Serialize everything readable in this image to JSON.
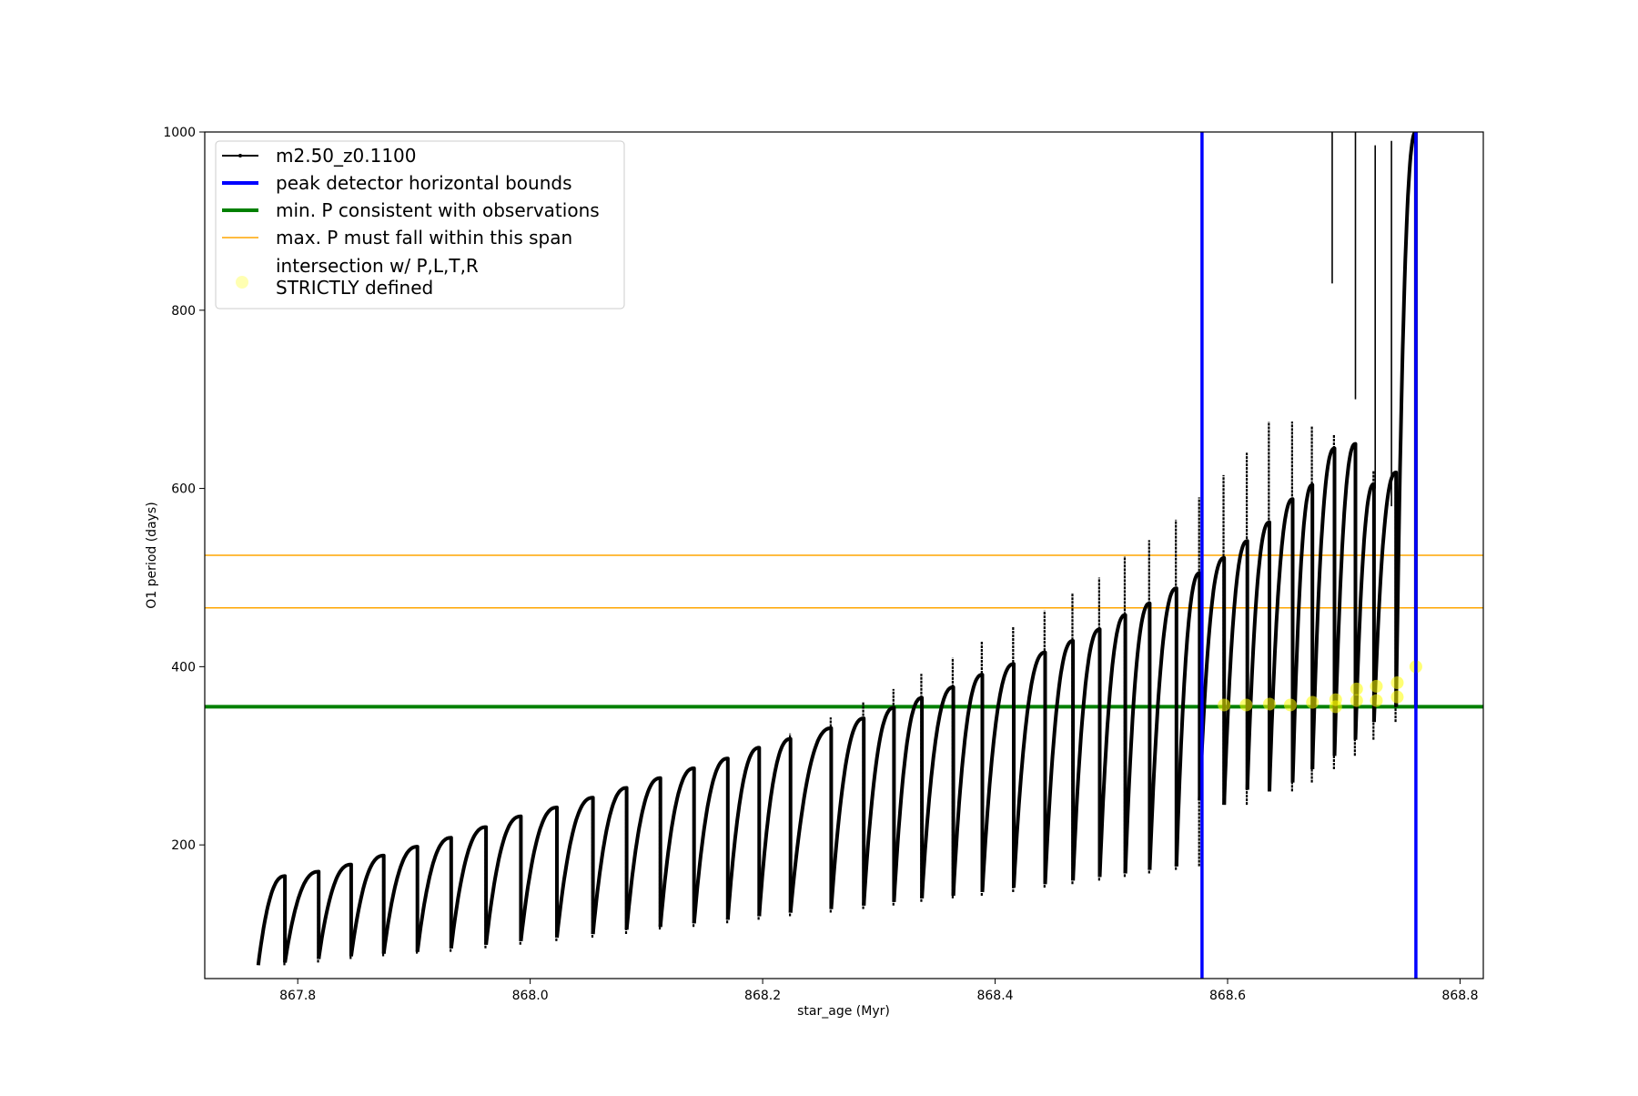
{
  "chart_data": {
    "type": "line",
    "xlabel": "star_age (Myr)",
    "ylabel": "O1 period (days)",
    "xlim": [
      867.72,
      868.82
    ],
    "ylim": [
      50,
      1000
    ],
    "xticks": [
      "867.8",
      "868.0",
      "868.2",
      "868.4",
      "868.6",
      "868.8"
    ],
    "xtick_values": [
      867.8,
      868.0,
      868.2,
      868.4,
      868.6,
      868.8
    ],
    "yticks": [
      "200",
      "400",
      "600",
      "800",
      "1000"
    ],
    "ytick_values": [
      200,
      400,
      600,
      800,
      1000
    ],
    "grid": false,
    "legend_position": "top-left",
    "series": [
      {
        "name": "m2.50_z0.1100",
        "kind": "sawtooth-line",
        "color": "#000000",
        "cycles": [
          {
            "start": 867.766,
            "end": 867.789,
            "min": 65,
            "max": 165,
            "spike": 135
          },
          {
            "start": 867.789,
            "end": 867.818,
            "min": 68,
            "max": 170,
            "spike": 168
          },
          {
            "start": 867.818,
            "end": 867.846,
            "min": 72,
            "max": 178,
            "spike": 175
          },
          {
            "start": 867.846,
            "end": 867.874,
            "min": 75,
            "max": 188,
            "spike": 185
          },
          {
            "start": 867.874,
            "end": 867.903,
            "min": 78,
            "max": 198,
            "spike": 195
          },
          {
            "start": 867.903,
            "end": 867.932,
            "min": 80,
            "max": 208,
            "spike": 206
          },
          {
            "start": 867.932,
            "end": 867.962,
            "min": 84,
            "max": 220,
            "spike": 218
          },
          {
            "start": 867.962,
            "end": 867.992,
            "min": 88,
            "max": 232,
            "spike": 230
          },
          {
            "start": 867.992,
            "end": 868.023,
            "min": 92,
            "max": 242,
            "spike": 240
          },
          {
            "start": 868.023,
            "end": 868.054,
            "min": 96,
            "max": 253,
            "spike": 252
          },
          {
            "start": 868.054,
            "end": 868.083,
            "min": 100,
            "max": 264,
            "spike": 263
          },
          {
            "start": 868.083,
            "end": 868.112,
            "min": 105,
            "max": 275,
            "spike": 274
          },
          {
            "start": 868.112,
            "end": 868.141,
            "min": 108,
            "max": 286,
            "spike": 285
          },
          {
            "start": 868.141,
            "end": 868.17,
            "min": 112,
            "max": 297,
            "spike": 298
          },
          {
            "start": 868.17,
            "end": 868.197,
            "min": 116,
            "max": 309,
            "spike": 312
          },
          {
            "start": 868.197,
            "end": 868.224,
            "min": 120,
            "max": 319,
            "spike": 325
          },
          {
            "start": 868.224,
            "end": 868.259,
            "min": 124,
            "max": 331,
            "spike": 343
          },
          {
            "start": 868.259,
            "end": 868.287,
            "min": 128,
            "max": 342,
            "spike": 360
          },
          {
            "start": 868.287,
            "end": 868.313,
            "min": 132,
            "max": 354,
            "spike": 375
          },
          {
            "start": 868.313,
            "end": 868.337,
            "min": 136,
            "max": 365,
            "spike": 392
          },
          {
            "start": 868.337,
            "end": 868.364,
            "min": 140,
            "max": 377,
            "spike": 410
          },
          {
            "start": 868.364,
            "end": 868.389,
            "min": 143,
            "max": 391,
            "spike": 428
          },
          {
            "start": 868.389,
            "end": 868.416,
            "min": 147,
            "max": 403,
            "spike": 445
          },
          {
            "start": 868.416,
            "end": 868.443,
            "min": 152,
            "max": 416,
            "spike": 463
          },
          {
            "start": 868.443,
            "end": 868.467,
            "min": 156,
            "max": 429,
            "spike": 483
          },
          {
            "start": 868.467,
            "end": 868.49,
            "min": 160,
            "max": 442,
            "spike": 500
          },
          {
            "start": 868.49,
            "end": 868.512,
            "min": 164,
            "max": 458,
            "spike": 524
          },
          {
            "start": 868.512,
            "end": 868.533,
            "min": 168,
            "max": 471,
            "spike": 542
          },
          {
            "start": 868.533,
            "end": 868.556,
            "min": 172,
            "max": 488,
            "spike": 565
          },
          {
            "start": 868.556,
            "end": 868.576,
            "min": 176,
            "max": 505,
            "spike": 590
          },
          {
            "start": 868.576,
            "end": 868.597,
            "min": 250,
            "max": 522,
            "spike": 615
          },
          {
            "start": 868.597,
            "end": 868.617,
            "min": 245,
            "max": 541,
            "spike": 640
          },
          {
            "start": 868.617,
            "end": 868.636,
            "min": 262,
            "max": 562,
            "spike": 675
          },
          {
            "start": 868.636,
            "end": 868.656,
            "min": 260,
            "max": 588,
            "spike": 675
          },
          {
            "start": 868.656,
            "end": 868.673,
            "min": 270,
            "max": 604,
            "spike": 670
          },
          {
            "start": 868.673,
            "end": 868.692,
            "min": 285,
            "max": 645,
            "spike": 660
          },
          {
            "start": 868.692,
            "end": 868.71,
            "min": 300,
            "max": 650,
            "spike": 650
          },
          {
            "start": 868.71,
            "end": 868.726,
            "min": 318,
            "max": 605,
            "spike": 620
          },
          {
            "start": 868.726,
            "end": 868.745,
            "min": 338,
            "max": 618,
            "spike": 615
          },
          {
            "start": 868.745,
            "end": 868.762,
            "min": 355,
            "max": 1000,
            "spike": 600
          }
        ],
        "high_spikes": [
          {
            "x": 868.69,
            "low": 830,
            "high": 1000
          },
          {
            "x": 868.71,
            "low": 700,
            "high": 1000
          },
          {
            "x": 868.727,
            "low": 600,
            "high": 985
          },
          {
            "x": 868.741,
            "low": 580,
            "high": 990
          }
        ]
      },
      {
        "name": "intersection w/ P,L,T,R STRICTLY defined",
        "kind": "scatter",
        "color": "#ffff00",
        "points": [
          {
            "x": 868.597,
            "y": 357
          },
          {
            "x": 868.616,
            "y": 357
          },
          {
            "x": 868.636,
            "y": 358
          },
          {
            "x": 868.654,
            "y": 357
          },
          {
            "x": 868.673,
            "y": 360
          },
          {
            "x": 868.693,
            "y": 363
          },
          {
            "x": 868.693,
            "y": 355
          },
          {
            "x": 868.711,
            "y": 375
          },
          {
            "x": 868.711,
            "y": 362
          },
          {
            "x": 868.728,
            "y": 378
          },
          {
            "x": 868.728,
            "y": 362
          },
          {
            "x": 868.746,
            "y": 382
          },
          {
            "x": 868.746,
            "y": 366
          },
          {
            "x": 868.762,
            "y": 400
          }
        ]
      }
    ],
    "reference_lines": [
      {
        "name": "peak detector horizontal bounds",
        "orientation": "vertical",
        "values": [
          868.578,
          868.762
        ],
        "color": "#0000ff"
      },
      {
        "name": "min. P consistent with observations",
        "orientation": "horizontal",
        "values": [
          355
        ],
        "color": "#008000"
      },
      {
        "name": "max. P must fall within this span",
        "orientation": "horizontal",
        "values": [
          466,
          525
        ],
        "color": "#ffa500"
      }
    ],
    "legend": [
      {
        "label": "m2.50_z0.1100",
        "style": "line-marker",
        "color": "#000000"
      },
      {
        "label": "peak detector horizontal bounds",
        "style": "line-thick",
        "color": "#0000ff"
      },
      {
        "label": "min. P consistent with observations",
        "style": "line-thick",
        "color": "#008000"
      },
      {
        "label": "max. P must fall within this span",
        "style": "line-thin",
        "color": "#ffa500"
      },
      {
        "label": "intersection w/ P,L,T,R\nSTRICTLY defined",
        "label_lines": [
          "intersection w/ P,L,T,R",
          "STRICTLY defined"
        ],
        "style": "marker",
        "color": "#ffff00"
      }
    ]
  }
}
